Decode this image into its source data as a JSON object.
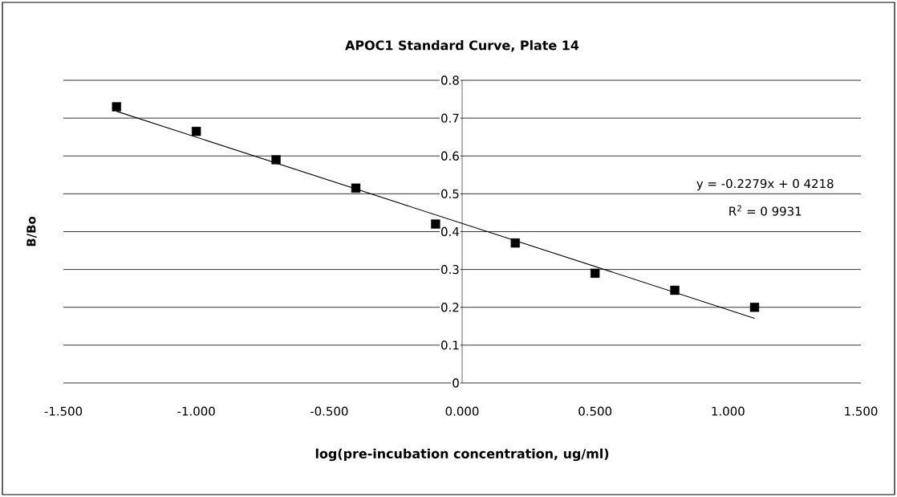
{
  "chart_data": {
    "type": "scatter",
    "title": "APOC1 Standard Curve, Plate 14",
    "xlabel": "log(pre-incubation concentration, ug/ml)",
    "ylabel": "B/Bo",
    "series": [
      {
        "color": "#000000",
        "marker": "square",
        "x": [
          -1.3,
          -1.0,
          -0.7,
          -0.4,
          -0.1,
          0.2,
          0.5,
          0.8,
          1.1
        ],
        "values": [
          0.73,
          0.665,
          0.59,
          0.515,
          0.42,
          0.37,
          0.29,
          0.245,
          0.2
        ]
      },
      {
        "type": "line",
        "color": "#000000",
        "marker": "none",
        "x": [
          -1.3,
          1.1
        ],
        "values": [
          0.718,
          0.171
        ]
      }
    ],
    "annotations": [
      "y = -0.2279x + 0 4218",
      "R$^{2}$ = 0 9931"
    ],
    "xlim": [
      -1.5,
      1.5
    ],
    "ylim": [
      0,
      0.8
    ],
    "xticks": [
      {
        "value": -1.5,
        "label": "-1.500"
      },
      {
        "value": -1.0,
        "label": "-1.000"
      },
      {
        "value": -0.5,
        "label": "-0.500"
      },
      {
        "value": 0,
        "label": "0.000"
      },
      {
        "value": 0.5,
        "label": "0.500"
      },
      {
        "value": 1.0,
        "label": "1.000"
      },
      {
        "value": 1.5,
        "label": "1.500"
      }
    ],
    "yticks": [
      0,
      0.1,
      0.2,
      0.3,
      0.4,
      0.5,
      0.6,
      0.7,
      0.8
    ],
    "grid": "y"
  }
}
